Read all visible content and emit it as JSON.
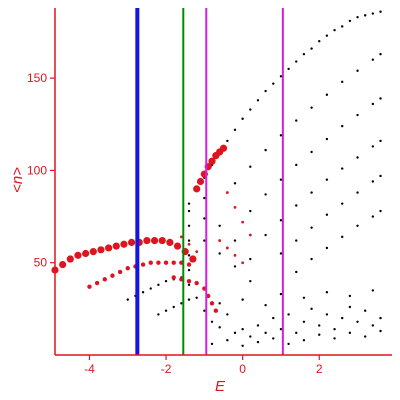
{
  "chart_data": {
    "type": "scatter",
    "title": "",
    "xlabel": "E",
    "ylabel": "<n>",
    "xlim": [
      -4.9,
      3.9
    ],
    "ylim": [
      0,
      188
    ],
    "xticks": [
      -4,
      -2,
      0,
      2
    ],
    "xtick_labels": [
      "-4",
      "-2",
      "0",
      "2"
    ],
    "yticks": [
      50,
      100,
      150
    ],
    "ytick_labels": [
      "50",
      "100",
      "150"
    ],
    "grid": false,
    "legend": "none",
    "colors": {
      "axis": "#e0141e",
      "black_points": "#000000",
      "red_points": "#e0141e",
      "line_blue": "#1414e6",
      "line_green": "#008c00",
      "line_magenta": "#d21ee0"
    },
    "vertical_lines": [
      {
        "x": -2.75,
        "color": "blue"
      },
      {
        "x": -1.55,
        "color": "green"
      },
      {
        "x": -0.95,
        "color": "magenta"
      },
      {
        "x": 1.05,
        "color": "magenta"
      }
    ],
    "series": [
      {
        "color": "black",
        "points": [
          [
            -1.4,
            82
          ],
          [
            -1.2,
            89
          ],
          [
            -1.0,
            96
          ],
          [
            -0.8,
            103
          ],
          [
            -0.6,
            110
          ],
          [
            -0.4,
            116
          ],
          [
            -0.2,
            122
          ],
          [
            0.0,
            128
          ],
          [
            0.2,
            133
          ],
          [
            0.4,
            138
          ],
          [
            0.6,
            143
          ],
          [
            0.8,
            147
          ],
          [
            1.0,
            151
          ],
          [
            1.2,
            155
          ],
          [
            1.4,
            159
          ],
          [
            1.6,
            163
          ],
          [
            1.8,
            166
          ],
          [
            2.0,
            170
          ],
          [
            2.2,
            173
          ],
          [
            2.4,
            176
          ],
          [
            2.6,
            178
          ],
          [
            2.8,
            181
          ],
          [
            3.0,
            183
          ],
          [
            3.2,
            184
          ],
          [
            3.4,
            185
          ],
          [
            3.6,
            186
          ]
        ]
      },
      {
        "color": "black",
        "points": [
          [
            -0.2,
            93
          ],
          [
            0.2,
            102
          ],
          [
            0.6,
            111
          ],
          [
            1.0,
            119
          ],
          [
            1.4,
            127
          ],
          [
            1.8,
            134
          ],
          [
            2.2,
            141
          ],
          [
            2.6,
            148
          ],
          [
            3.0,
            154
          ],
          [
            3.4,
            160
          ],
          [
            3.6,
            163
          ]
        ]
      },
      {
        "color": "black",
        "points": [
          [
            0.2,
            78
          ],
          [
            0.6,
            87
          ],
          [
            1.0,
            95
          ],
          [
            1.4,
            103
          ],
          [
            1.8,
            110
          ],
          [
            2.2,
            117
          ],
          [
            2.6,
            124
          ],
          [
            3.0,
            130
          ],
          [
            3.4,
            136
          ],
          [
            3.6,
            139
          ]
        ]
      },
      {
        "color": "black",
        "points": [
          [
            0.6,
            65
          ],
          [
            1.0,
            73
          ],
          [
            1.4,
            81
          ],
          [
            1.8,
            88
          ],
          [
            2.2,
            95
          ],
          [
            2.6,
            101
          ],
          [
            3.0,
            107
          ],
          [
            3.4,
            113
          ],
          [
            3.6,
            116
          ]
        ]
      },
      {
        "color": "black",
        "points": [
          [
            1.0,
            55
          ],
          [
            1.4,
            62
          ],
          [
            1.8,
            69
          ],
          [
            2.2,
            76
          ],
          [
            2.6,
            82
          ],
          [
            3.0,
            88
          ],
          [
            3.4,
            94
          ],
          [
            3.6,
            97
          ]
        ]
      },
      {
        "color": "black",
        "points": [
          [
            1.4,
            45
          ],
          [
            1.8,
            52
          ],
          [
            2.2,
            58
          ],
          [
            2.6,
            64
          ],
          [
            3.0,
            70
          ],
          [
            3.4,
            75
          ],
          [
            3.6,
            78
          ]
        ]
      },
      {
        "color": "black",
        "points": [
          [
            -1.4,
            78
          ],
          [
            -1.4,
            70
          ],
          [
            -1.4,
            62
          ],
          [
            -1.4,
            54
          ],
          [
            -1.4,
            46
          ],
          [
            -1.4,
            38
          ],
          [
            -1.0,
            85
          ],
          [
            -1.0,
            74
          ],
          [
            -1.0,
            62
          ],
          [
            -0.6,
            70
          ],
          [
            -0.6,
            55
          ],
          [
            -0.2,
            62
          ],
          [
            -0.2,
            48
          ],
          [
            0.2,
            52
          ],
          [
            0.2,
            40
          ]
        ]
      },
      {
        "color": "black",
        "points": [
          [
            -3.0,
            30
          ],
          [
            -2.8,
            32
          ],
          [
            -2.6,
            34
          ],
          [
            -2.4,
            36
          ],
          [
            -2.2,
            38
          ],
          [
            -2.0,
            40
          ],
          [
            -1.8,
            41
          ],
          [
            -1.6,
            42
          ],
          [
            -2.2,
            22
          ],
          [
            -2.0,
            24
          ],
          [
            -1.8,
            26
          ],
          [
            -1.6,
            28
          ],
          [
            -1.4,
            30
          ],
          [
            -1.2,
            31
          ]
        ]
      },
      {
        "color": "black",
        "points": [
          [
            -1.0,
            24
          ],
          [
            -0.8,
            18
          ],
          [
            -0.6,
            15
          ],
          [
            -0.4,
            22
          ],
          [
            -0.2,
            12
          ],
          [
            0.0,
            14
          ],
          [
            0.2,
            10
          ],
          [
            0.4,
            16
          ],
          [
            0.6,
            12
          ],
          [
            0.8,
            20
          ],
          [
            1.0,
            14
          ],
          [
            1.2,
            22
          ],
          [
            1.4,
            12
          ],
          [
            1.6,
            18
          ],
          [
            1.8,
            25
          ],
          [
            2.0,
            16
          ],
          [
            2.2,
            22
          ],
          [
            2.4,
            14
          ],
          [
            2.6,
            20
          ],
          [
            2.8,
            26
          ],
          [
            3.0,
            18
          ],
          [
            3.2,
            24
          ],
          [
            3.4,
            16
          ],
          [
            3.6,
            20
          ],
          [
            -0.8,
            6
          ],
          [
            -0.4,
            8
          ],
          [
            0.0,
            5
          ],
          [
            0.4,
            7
          ],
          [
            0.8,
            9
          ],
          [
            1.2,
            6
          ],
          [
            1.6,
            8
          ],
          [
            2.0,
            11
          ],
          [
            2.4,
            9
          ],
          [
            2.8,
            12
          ],
          [
            3.2,
            10
          ],
          [
            3.6,
            13
          ],
          [
            -0.6,
            28
          ],
          [
            0.0,
            30
          ],
          [
            0.6,
            27
          ],
          [
            1.0,
            33
          ],
          [
            1.6,
            31
          ],
          [
            2.2,
            34
          ],
          [
            2.8,
            32
          ],
          [
            3.4,
            35
          ]
        ]
      }
    ],
    "red_series": [
      {
        "size": "large",
        "points": [
          [
            -4.9,
            46
          ],
          [
            -4.7,
            49
          ],
          [
            -4.5,
            52
          ],
          [
            -4.3,
            54
          ],
          [
            -4.1,
            55
          ],
          [
            -3.9,
            56
          ],
          [
            -3.7,
            57
          ],
          [
            -3.5,
            58
          ],
          [
            -3.3,
            59
          ],
          [
            -3.1,
            60
          ],
          [
            -2.9,
            61
          ],
          [
            -2.7,
            61
          ],
          [
            -2.5,
            62
          ],
          [
            -2.3,
            62
          ],
          [
            -2.1,
            62
          ],
          [
            -1.9,
            61
          ],
          [
            -1.7,
            59
          ],
          [
            -1.5,
            56
          ],
          [
            -1.3,
            52
          ]
        ]
      },
      {
        "size": "large",
        "points": [
          [
            -1.2,
            90
          ],
          [
            -1.1,
            94
          ],
          [
            -1.0,
            98
          ],
          [
            -0.9,
            102
          ],
          [
            -0.8,
            105
          ],
          [
            -0.7,
            108
          ],
          [
            -0.6,
            110
          ],
          [
            -0.5,
            112
          ]
        ]
      },
      {
        "size": "medium",
        "points": [
          [
            -4.0,
            37
          ],
          [
            -3.8,
            39
          ],
          [
            -3.6,
            41
          ],
          [
            -3.4,
            43
          ],
          [
            -3.2,
            45
          ],
          [
            -3.0,
            47
          ],
          [
            -2.8,
            48
          ],
          [
            -2.6,
            49
          ],
          [
            -2.4,
            50
          ],
          [
            -2.2,
            50
          ],
          [
            -2.0,
            50
          ],
          [
            -1.8,
            50
          ],
          [
            -1.6,
            50
          ],
          [
            -1.4,
            49
          ]
        ]
      },
      {
        "size": "medium",
        "points": [
          [
            -1.8,
            42
          ],
          [
            -1.6,
            41
          ],
          [
            -1.4,
            40
          ],
          [
            -1.2,
            39
          ],
          [
            -1.0,
            36
          ],
          [
            -0.9,
            32
          ],
          [
            -0.8,
            28
          ],
          [
            -0.7,
            24
          ]
        ]
      },
      {
        "size": "small",
        "points": [
          [
            -0.4,
            88
          ],
          [
            -0.2,
            80
          ],
          [
            0.0,
            72
          ],
          [
            0.2,
            65
          ],
          [
            -0.6,
            62
          ],
          [
            -0.4,
            58
          ],
          [
            -0.2,
            54
          ],
          [
            0.0,
            50
          ],
          [
            -1.6,
            64
          ],
          [
            -1.4,
            60
          ],
          [
            -1.2,
            56
          ]
        ]
      }
    ]
  }
}
